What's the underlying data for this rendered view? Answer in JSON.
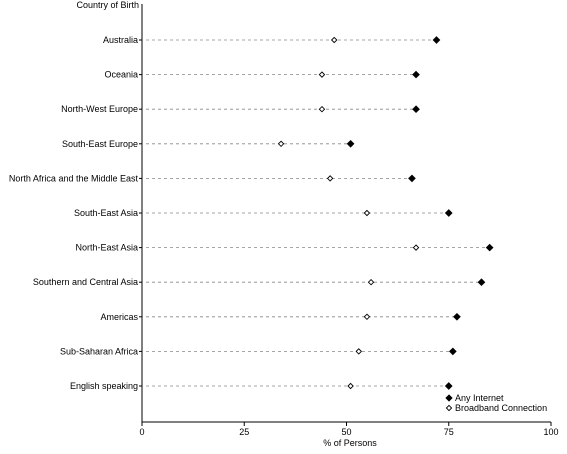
{
  "chart_data": {
    "type": "scatter",
    "orientation": "horizontal-dot-plot",
    "ytitle": "Country of Birth",
    "xlabel": "% of Persons",
    "xlim": [
      0,
      100
    ],
    "xticks": [
      0,
      25,
      50,
      75,
      100
    ],
    "grid": "dashed leader lines per category",
    "legend_position": "bottom-right",
    "categories": [
      "Australia",
      "Oceania",
      "North-West Europe",
      "South-East Europe",
      "North Africa and the Middle East",
      "South-East Asia",
      "North-East Asia",
      "Southern and Central Asia",
      "Americas",
      "Sub-Saharan Africa",
      "English speaking"
    ],
    "series": [
      {
        "name": "Any Internet",
        "marker": "filled-diamond",
        "color": "#000000",
        "values": [
          72,
          67,
          67,
          51,
          66,
          75,
          85,
          83,
          77,
          76,
          75
        ]
      },
      {
        "name": "Broadband Connection",
        "marker": "open-diamond",
        "color": "#000000",
        "values": [
          47,
          44,
          44,
          34,
          46,
          55,
          67,
          56,
          55,
          53,
          51
        ]
      }
    ]
  }
}
